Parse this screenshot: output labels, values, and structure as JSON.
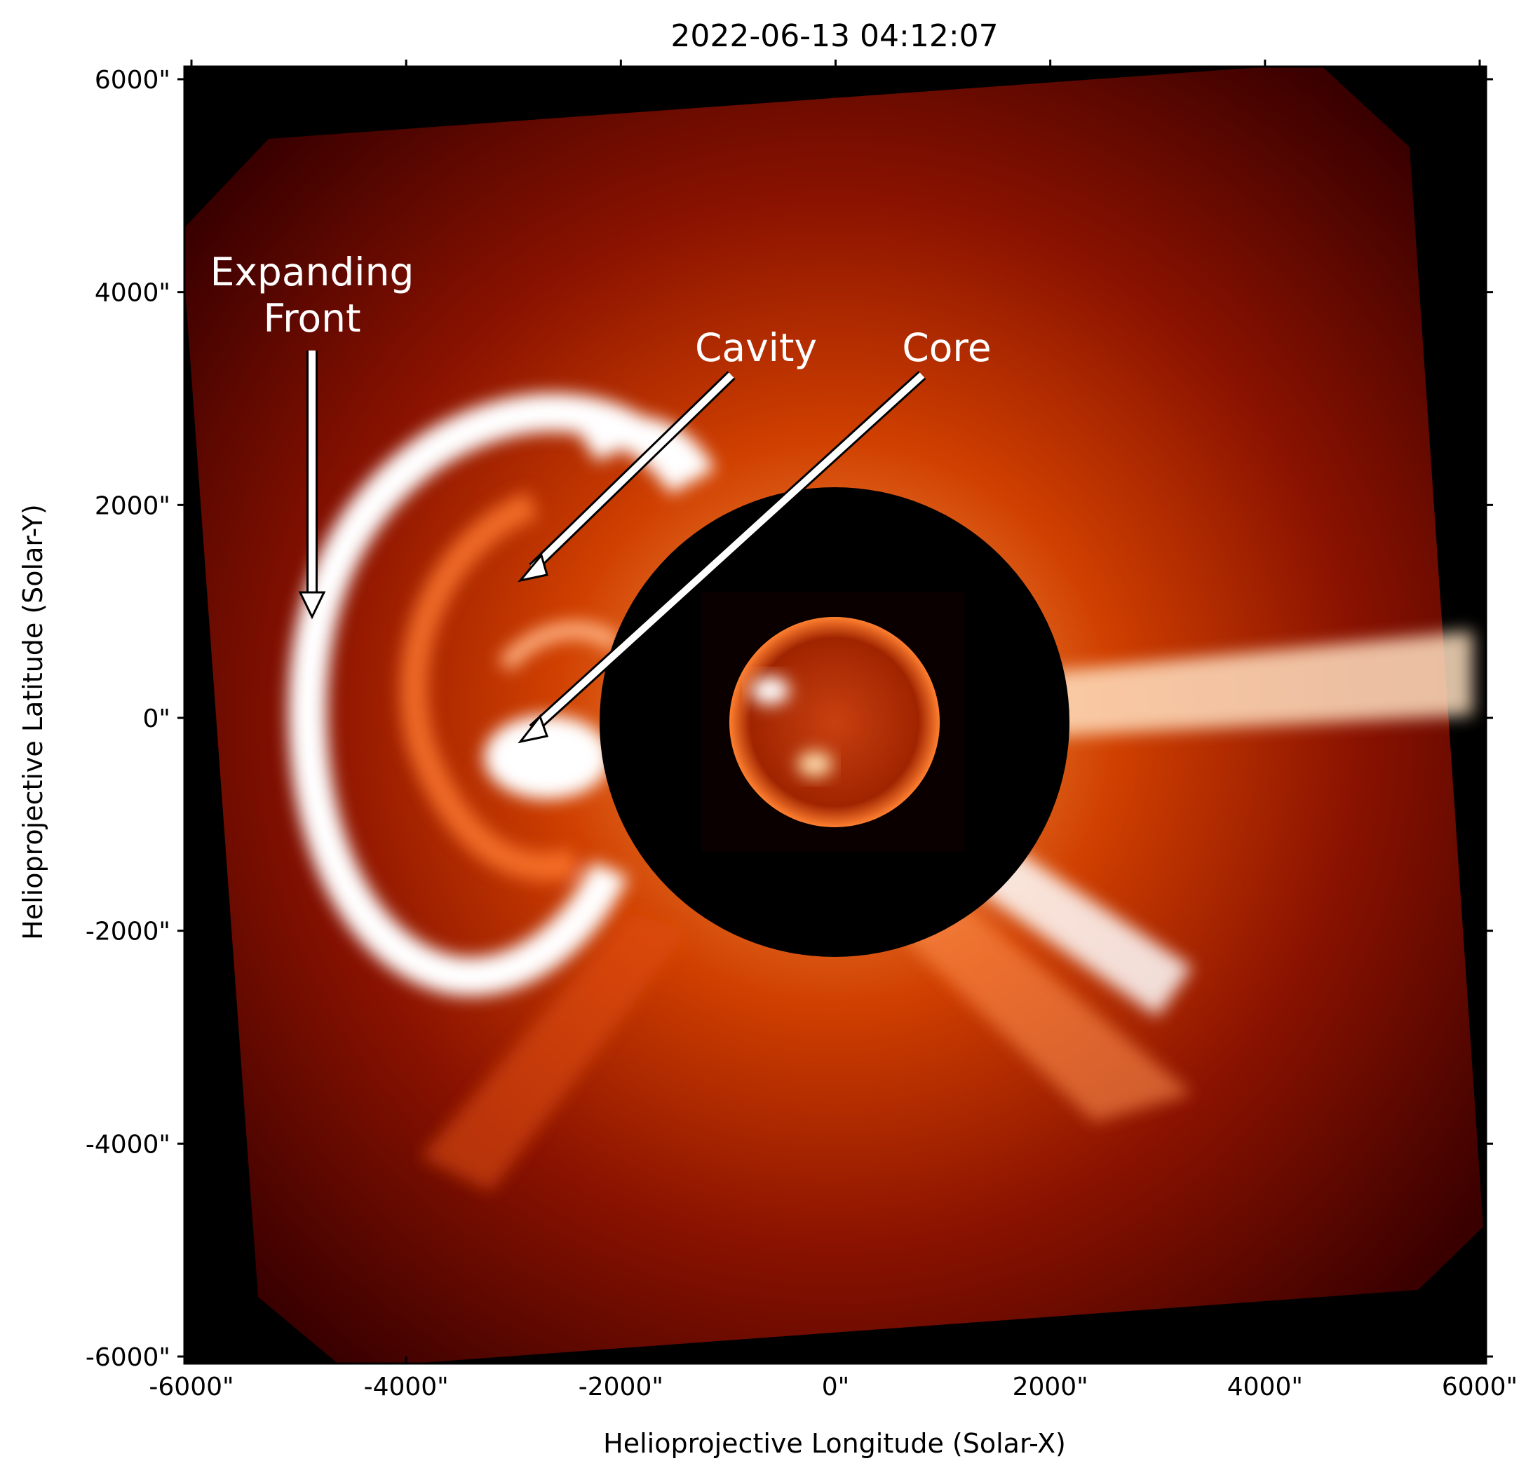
{
  "figure": {
    "title": "2022-06-13 04:12:07",
    "xlabel": "Helioprojective Longitude (Solar-X)",
    "ylabel": "Helioprojective Latitude (Solar-Y)",
    "x_ticks": [
      "-6000\"",
      "-4000\"",
      "-2000\"",
      "0\"",
      "2000\"",
      "4000\"",
      "6000\""
    ],
    "y_ticks": [
      "6000\"",
      "4000\"",
      "2000\"",
      "0\"",
      "-2000\"",
      "-4000\"",
      "-6000\""
    ],
    "annotations": {
      "expanding_front_line1": "Expanding",
      "expanding_front_line2": "Front",
      "cavity": "Cavity",
      "core": "Core"
    }
  },
  "colors": {
    "background": "#000000",
    "corona_dark": "#3a0000",
    "corona_mid": "#c03000",
    "corona_bright": "#ffffff",
    "occulter": "#000000",
    "sun_disk": "#b02800",
    "annotation": "#ffffff"
  }
}
